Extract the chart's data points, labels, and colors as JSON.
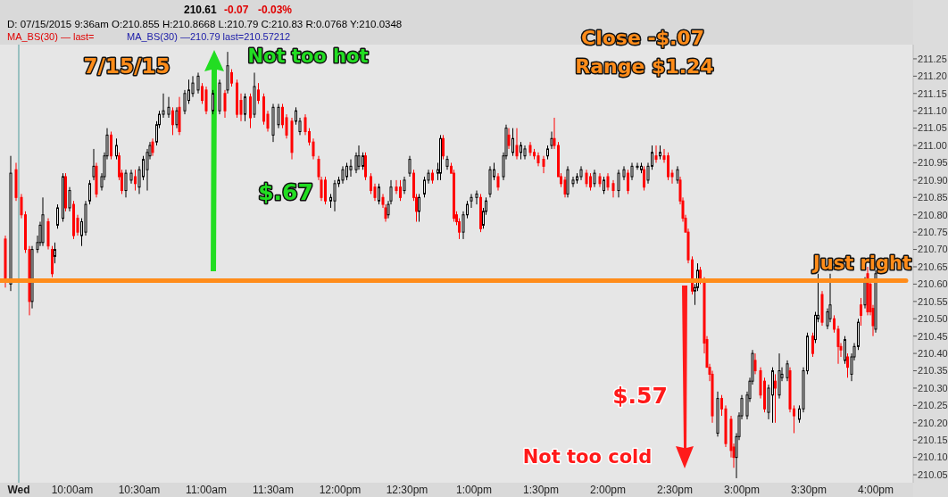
{
  "chart_data": {
    "type": "candlestick",
    "xlim": [
      9.46,
      16.28
    ],
    "ylim": [
      210.027,
      211.291
    ],
    "xticks": [
      {
        "value": 9.6,
        "label": "Wed"
      },
      {
        "value": 10,
        "label": "10:00am"
      },
      {
        "value": 10.5,
        "label": "10:30am"
      },
      {
        "value": 11,
        "label": "11:00am"
      },
      {
        "value": 11.5,
        "label": "11:30am"
      },
      {
        "value": 12,
        "label": "12:00pm"
      },
      {
        "value": 12.5,
        "label": "12:30pm"
      },
      {
        "value": 13,
        "label": "1:00pm"
      },
      {
        "value": 13.5,
        "label": "1:30pm"
      },
      {
        "value": 14,
        "label": "2:00pm"
      },
      {
        "value": 14.5,
        "label": "2:30pm"
      },
      {
        "value": 15,
        "label": "3:00pm"
      },
      {
        "value": 15.5,
        "label": "3:30pm"
      },
      {
        "value": 16,
        "label": "4:00pm"
      }
    ],
    "yticks": [
      210.05,
      {
        "value": 210.1,
        "label": "210.10"
      },
      210.15,
      {
        "value": 210.2,
        "label": "210.20"
      },
      210.25,
      {
        "value": 210.3,
        "label": "210.30"
      },
      210.35,
      {
        "value": 210.4,
        "label": "210.40"
      },
      210.45,
      {
        "value": 210.5,
        "label": "210.50"
      },
      210.55,
      {
        "value": 210.6,
        "label": "210.60"
      },
      210.65,
      {
        "value": 210.7,
        "label": "210.70"
      },
      210.75,
      {
        "value": 210.8,
        "label": "210.80"
      },
      210.85,
      {
        "value": 210.9,
        "label": "210.90"
      },
      210.95,
      {
        "value": 211,
        "label": "211.00"
      },
      211.05,
      {
        "value": 211.1,
        "label": "211.10"
      },
      211.15,
      {
        "value": 211.2,
        "label": "211.20"
      },
      211.25
    ],
    "ref_lines": [
      {
        "axis": "y",
        "value": 210.61,
        "color": "#ff8c1a"
      },
      {
        "axis": "x",
        "value": 9.6,
        "color": "#4d9a9a"
      }
    ],
    "annotations": [
      "210.61",
      "-0.07",
      "-0.03%",
      "D: 07/15/2015   9:36am O:210.855 H:210.8668 L:210.79 C:210.83   R:0.0768 Y:210.0348",
      "MA_BS(30) — last=",
      "MA_BS(30) —210.79 last=210.57212",
      "7/15/15",
      "Not too hot",
      "$.67",
      "Close -$.07",
      "Range $1.24",
      "Just right",
      "$.57",
      "Not too cold"
    ],
    "x": [
      9.5,
      9.54,
      9.58,
      9.62,
      9.65,
      9.68,
      9.7,
      9.74,
      9.76,
      9.78,
      9.82,
      9.85,
      9.87,
      9.89,
      9.93,
      9.95,
      9.98,
      10.01,
      10.04,
      10.07,
      10.1,
      10.13,
      10.16,
      10.18,
      10.22,
      10.24,
      10.26,
      10.29,
      10.33,
      10.35,
      10.37,
      10.4,
      10.44,
      10.47,
      10.5,
      10.53,
      10.56,
      10.58,
      10.6,
      10.63,
      10.65,
      10.68,
      10.72,
      10.75,
      10.78,
      10.8,
      10.84,
      10.87,
      10.9,
      10.94,
      10.97,
      11.0,
      11.05,
      11.1,
      11.14,
      11.16,
      11.19,
      11.23,
      11.26,
      11.29,
      11.33,
      11.36,
      11.39,
      11.43,
      11.46,
      11.5,
      11.54,
      11.57,
      11.6,
      11.64,
      11.67,
      11.7,
      11.74,
      11.77,
      11.8,
      11.84,
      11.86,
      11.89,
      11.93,
      11.96,
      11.99,
      12.02,
      12.05,
      12.08,
      12.12,
      12.14,
      12.17,
      12.19,
      12.23,
      12.26,
      12.29,
      12.32,
      12.34,
      12.36,
      12.38,
      12.42,
      12.45,
      12.48,
      12.52,
      12.55,
      12.57,
      12.59,
      12.63,
      12.66,
      12.69,
      12.73,
      12.75,
      12.77,
      12.8,
      12.83,
      12.85,
      12.87,
      12.89,
      12.92,
      12.95,
      12.98,
      13.02,
      13.05,
      13.07,
      13.09,
      13.12,
      13.15,
      13.18,
      13.22,
      13.24,
      13.26,
      13.29,
      13.32,
      13.35,
      13.38,
      13.42,
      13.45,
      13.48,
      13.52,
      13.55,
      13.58,
      13.6,
      13.63,
      13.65,
      13.68,
      13.7,
      13.74,
      13.77,
      13.8,
      13.84,
      13.87,
      13.9,
      13.94,
      13.97,
      14.0,
      14.04,
      14.08,
      14.12,
      14.15,
      14.18,
      14.22,
      14.25,
      14.27,
      14.3,
      14.33,
      14.36,
      14.39,
      14.42,
      14.45,
      14.48,
      14.52,
      14.54,
      14.56,
      14.58,
      14.6,
      14.63,
      14.65,
      14.67,
      14.69,
      14.72,
      14.74,
      14.76,
      14.78,
      14.82,
      14.85,
      14.88,
      14.92,
      14.94,
      14.96,
      14.98,
      15.0,
      15.04,
      15.06,
      15.08,
      15.1,
      15.14,
      15.17,
      15.2,
      15.23,
      15.25,
      15.28,
      15.3,
      15.34,
      15.36,
      15.39,
      15.43,
      15.46,
      15.49,
      15.53,
      15.55,
      15.57,
      15.6,
      15.64,
      15.66,
      15.69,
      15.72,
      15.74,
      15.77,
      15.79,
      15.82,
      15.84,
      15.87,
      15.89,
      15.92,
      15.94,
      15.96,
      15.98,
      16.0
    ],
    "ohlc": [
      [
        210.73,
        210.74,
        210.59,
        210.61
      ],
      [
        210.6,
        210.97,
        210.58,
        210.92
      ],
      [
        210.93,
        210.95,
        210.84,
        210.85
      ],
      [
        210.85,
        210.86,
        210.79,
        210.8
      ],
      [
        210.8,
        210.81,
        210.69,
        210.7
      ],
      [
        210.7,
        210.71,
        210.51,
        210.55
      ],
      [
        210.55,
        210.71,
        210.53,
        210.7
      ],
      [
        210.7,
        210.74,
        210.69,
        210.72
      ],
      [
        210.72,
        210.78,
        210.71,
        210.77
      ],
      [
        210.72,
        210.85,
        210.71,
        210.8
      ],
      [
        210.78,
        210.79,
        210.7,
        210.71
      ],
      [
        210.7,
        210.71,
        210.62,
        210.63
      ],
      [
        210.68,
        210.72,
        210.66,
        210.7
      ],
      [
        210.77,
        210.83,
        210.76,
        210.82
      ],
      [
        210.79,
        210.92,
        210.78,
        210.91
      ],
      [
        210.91,
        210.92,
        210.81,
        210.82
      ],
      [
        210.82,
        210.88,
        210.81,
        210.87
      ],
      [
        210.83,
        210.84,
        210.73,
        210.74
      ],
      [
        210.79,
        210.8,
        210.74,
        210.75
      ],
      [
        210.74,
        210.79,
        210.71,
        210.78
      ],
      [
        210.75,
        210.84,
        210.74,
        210.83
      ],
      [
        210.84,
        210.9,
        210.83,
        210.89
      ],
      [
        210.91,
        210.99,
        210.9,
        210.94
      ],
      [
        210.94,
        210.95,
        210.85,
        210.86
      ],
      [
        210.88,
        210.92,
        210.87,
        210.91
      ],
      [
        210.91,
        210.98,
        210.9,
        210.97
      ],
      [
        210.97,
        211.05,
        210.96,
        211.03
      ],
      [
        211.03,
        211.04,
        210.96,
        210.97
      ],
      [
        210.97,
        211.02,
        210.96,
        211.0
      ],
      [
        210.97,
        210.98,
        210.9,
        210.91
      ],
      [
        210.92,
        210.93,
        210.86,
        210.87
      ],
      [
        210.87,
        210.93,
        210.85,
        210.92
      ],
      [
        210.9,
        210.93,
        210.89,
        210.92
      ],
      [
        210.91,
        210.93,
        210.87,
        210.89
      ],
      [
        210.88,
        210.94,
        210.86,
        210.93
      ],
      [
        210.91,
        210.97,
        210.9,
        210.96
      ],
      [
        210.93,
        210.99,
        210.87,
        210.98
      ],
      [
        210.97,
        211.01,
        210.96,
        211.0
      ],
      [
        211.01,
        211.02,
        210.97,
        210.98
      ],
      [
        211.01,
        211.07,
        211.0,
        211.06
      ],
      [
        211.06,
        211.1,
        211.05,
        211.09
      ],
      [
        211.09,
        211.15,
        211.08,
        211.1
      ],
      [
        211.09,
        211.14,
        211.08,
        211.11
      ],
      [
        211.1,
        211.11,
        211.03,
        211.06
      ],
      [
        211.06,
        211.11,
        211.05,
        211.1
      ],
      [
        211.11,
        211.14,
        211.03,
        211.04
      ],
      [
        211.1,
        211.16,
        211.09,
        211.15
      ],
      [
        211.13,
        211.19,
        211.12,
        211.16
      ],
      [
        211.15,
        211.2,
        211.14,
        211.18
      ],
      [
        211.16,
        211.21,
        211.15,
        211.2
      ],
      [
        211.17,
        211.18,
        211.12,
        211.13
      ],
      [
        211.16,
        211.17,
        211.09,
        211.1
      ],
      [
        211.1,
        211.16,
        211.09,
        211.15
      ],
      [
        211.1,
        211.19,
        211.09,
        211.18
      ],
      [
        211.15,
        211.16,
        211.08,
        211.1
      ],
      [
        211.16,
        211.27,
        211.15,
        211.23
      ],
      [
        211.21,
        211.22,
        211.17,
        211.18
      ],
      [
        211.18,
        211.19,
        211.08,
        211.09
      ],
      [
        211.13,
        211.15,
        211.07,
        211.09
      ],
      [
        211.09,
        211.15,
        211.07,
        211.14
      ],
      [
        211.14,
        211.15,
        211.05,
        211.08
      ],
      [
        211.09,
        211.21,
        211.08,
        211.17
      ],
      [
        211.16,
        211.18,
        211.12,
        211.13
      ],
      [
        211.14,
        211.15,
        211.06,
        211.07
      ],
      [
        211.09,
        211.1,
        211.04,
        211.05
      ],
      [
        211.03,
        211.12,
        211.01,
        211.11
      ],
      [
        211.06,
        211.12,
        211.05,
        211.11
      ],
      [
        211.11,
        211.12,
        211.05,
        211.06
      ],
      [
        211.08,
        211.09,
        211.02,
        211.03
      ],
      [
        211.07,
        211.08,
        210.96,
        210.98
      ],
      [
        211.07,
        211.11,
        211.06,
        211.1
      ],
      [
        211.04,
        211.08,
        211.03,
        211.07
      ],
      [
        211.08,
        211.09,
        211.03,
        211.04
      ],
      [
        211.04,
        211.05,
        211.0,
        211.01
      ],
      [
        211.01,
        211.02,
        210.96,
        210.97
      ],
      [
        210.96,
        210.97,
        210.9,
        210.91
      ],
      [
        210.9,
        210.91,
        210.84,
        210.85
      ],
      [
        210.9,
        210.91,
        210.83,
        210.84
      ],
      [
        210.84,
        210.86,
        210.82,
        210.85
      ],
      [
        210.84,
        210.9,
        210.81,
        210.89
      ],
      [
        210.89,
        210.91,
        210.88,
        210.9
      ],
      [
        210.9,
        210.94,
        210.89,
        210.93
      ],
      [
        210.91,
        210.95,
        210.9,
        210.94
      ],
      [
        210.93,
        210.96,
        210.91,
        210.94
      ],
      [
        210.93,
        210.98,
        210.92,
        210.97
      ],
      [
        210.94,
        211.0,
        210.93,
        210.97
      ],
      [
        210.94,
        210.98,
        210.93,
        210.97
      ],
      [
        210.97,
        210.98,
        210.9,
        210.91
      ],
      [
        210.91,
        210.92,
        210.86,
        210.87
      ],
      [
        210.88,
        210.89,
        210.84,
        210.85
      ],
      [
        210.84,
        210.89,
        210.83,
        210.88
      ],
      [
        210.85,
        210.86,
        210.82,
        210.83
      ],
      [
        210.82,
        210.83,
        210.78,
        210.79
      ],
      [
        210.8,
        210.84,
        210.79,
        210.83
      ],
      [
        210.84,
        210.9,
        210.83,
        210.88
      ],
      [
        210.88,
        210.9,
        210.86,
        210.87
      ],
      [
        210.88,
        210.9,
        210.84,
        210.85
      ],
      [
        210.87,
        210.91,
        210.86,
        210.9
      ],
      [
        210.92,
        210.97,
        210.91,
        210.96
      ],
      [
        210.92,
        210.93,
        210.84,
        210.85
      ],
      [
        210.85,
        210.86,
        210.78,
        210.81
      ],
      [
        210.81,
        210.86,
        210.78,
        210.85
      ],
      [
        210.86,
        210.91,
        210.85,
        210.9
      ],
      [
        210.9,
        210.93,
        210.89,
        210.92
      ],
      [
        210.92,
        210.93,
        210.89,
        210.9
      ],
      [
        210.92,
        210.95,
        210.9,
        210.93
      ],
      [
        210.92,
        211.03,
        210.9,
        211.02
      ],
      [
        211.02,
        211.03,
        210.96,
        210.97
      ],
      [
        210.94,
        210.97,
        210.93,
        210.96
      ],
      [
        210.94,
        210.95,
        210.92,
        210.92
      ],
      [
        210.92,
        210.93,
        210.78,
        210.79
      ],
      [
        210.8,
        210.81,
        210.77,
        210.78
      ],
      [
        210.78,
        210.79,
        210.73,
        210.75
      ],
      [
        210.75,
        210.81,
        210.73,
        210.8
      ],
      [
        210.8,
        210.84,
        210.79,
        210.83
      ],
      [
        210.84,
        210.86,
        210.82,
        210.85
      ],
      [
        210.85,
        210.87,
        210.83,
        210.86
      ],
      [
        210.85,
        210.86,
        210.75,
        210.76
      ],
      [
        210.77,
        210.82,
        210.76,
        210.81
      ],
      [
        210.81,
        210.85,
        210.8,
        210.84
      ],
      [
        210.86,
        210.94,
        210.85,
        210.93
      ],
      [
        210.91,
        210.95,
        210.9,
        210.93
      ],
      [
        210.91,
        210.92,
        210.87,
        210.88
      ],
      [
        210.91,
        210.98,
        210.9,
        210.97
      ],
      [
        210.97,
        211.06,
        210.96,
        211.05
      ],
      [
        211.03,
        211.05,
        210.99,
        211.0
      ],
      [
        210.98,
        211.05,
        210.97,
        211.02
      ],
      [
        211.0,
        211.05,
        210.96,
        210.97
      ],
      [
        210.98,
        211.01,
        210.96,
        211.0
      ],
      [
        210.97,
        211.0,
        210.96,
        210.99
      ],
      [
        211.0,
        211.01,
        210.97,
        210.98
      ],
      [
        210.98,
        210.99,
        210.96,
        210.97
      ],
      [
        210.97,
        210.98,
        210.94,
        210.95
      ],
      [
        210.96,
        210.97,
        210.92,
        210.94
      ],
      [
        210.97,
        211.0,
        210.96,
        210.99
      ],
      [
        211.0,
        211.04,
        210.99,
        211.02
      ],
      [
        211.02,
        211.08,
        210.99,
        211.0
      ],
      [
        211.0,
        211.01,
        210.91,
        210.91
      ],
      [
        210.91,
        210.92,
        210.88,
        210.89
      ],
      [
        210.9,
        210.91,
        210.85,
        210.86
      ],
      [
        210.86,
        210.94,
        210.85,
        210.93
      ],
      [
        210.89,
        210.91,
        210.88,
        210.9
      ],
      [
        210.9,
        210.92,
        210.89,
        210.91
      ],
      [
        210.91,
        210.94,
        210.9,
        210.93
      ],
      [
        210.92,
        210.93,
        210.88,
        210.89
      ],
      [
        210.91,
        210.92,
        210.87,
        210.88
      ],
      [
        210.89,
        210.93,
        210.88,
        210.92
      ],
      [
        210.91,
        210.92,
        210.88,
        210.89
      ],
      [
        210.87,
        210.91,
        210.86,
        210.9
      ],
      [
        210.91,
        210.92,
        210.87,
        210.88
      ],
      [
        210.89,
        210.9,
        210.85,
        210.87
      ],
      [
        210.87,
        210.93,
        210.85,
        210.92
      ],
      [
        210.91,
        210.94,
        210.9,
        210.93
      ],
      [
        210.92,
        210.93,
        210.86,
        210.87
      ],
      [
        210.91,
        210.95,
        210.9,
        210.94
      ],
      [
        210.94,
        210.95,
        210.93,
        210.94
      ],
      [
        210.93,
        210.95,
        210.92,
        210.94
      ],
      [
        210.93,
        210.94,
        210.87,
        210.88
      ],
      [
        210.9,
        210.95,
        210.89,
        210.94
      ],
      [
        210.94,
        211.0,
        210.93,
        210.98
      ],
      [
        210.97,
        211.0,
        210.95,
        210.96
      ],
      [
        210.97,
        211.0,
        210.96,
        210.98
      ],
      [
        210.97,
        210.99,
        210.95,
        210.96
      ],
      [
        210.97,
        210.98,
        210.9,
        210.91
      ],
      [
        210.92,
        210.93,
        210.89,
        210.91
      ],
      [
        210.9,
        210.94,
        210.89,
        210.93
      ],
      [
        210.9,
        210.91,
        210.83,
        210.84
      ],
      [
        210.84,
        210.85,
        210.78,
        210.79
      ],
      [
        210.79,
        210.8,
        210.75,
        210.75
      ],
      [
        210.75,
        210.76,
        210.66,
        210.67
      ],
      [
        210.67,
        210.68,
        210.57,
        210.58
      ],
      [
        210.58,
        210.6,
        210.54,
        210.59
      ],
      [
        210.59,
        210.66,
        210.58,
        210.64
      ],
      [
        210.64,
        210.65,
        210.6,
        210.61
      ],
      [
        210.61,
        210.62,
        210.4,
        210.43
      ],
      [
        210.44,
        210.45,
        210.36,
        210.36
      ],
      [
        210.36,
        210.37,
        210.32,
        210.34
      ],
      [
        210.34,
        210.35,
        210.2,
        210.22
      ],
      [
        210.17,
        210.29,
        210.16,
        210.27
      ],
      [
        210.27,
        210.28,
        210.22,
        210.24
      ],
      [
        210.24,
        210.25,
        210.13,
        210.14
      ],
      [
        210.21,
        210.22,
        210.1,
        210.12
      ],
      [
        210.13,
        210.14,
        210.07,
        210.1
      ],
      [
        210.1,
        210.17,
        210.04,
        210.16
      ],
      [
        210.16,
        210.23,
        210.15,
        210.22
      ],
      [
        210.22,
        210.28,
        210.21,
        210.27
      ],
      [
        210.22,
        210.29,
        210.21,
        210.28
      ],
      [
        210.27,
        210.33,
        210.26,
        210.32
      ],
      [
        210.32,
        210.41,
        210.31,
        210.4
      ],
      [
        210.38,
        210.4,
        210.34,
        210.35
      ],
      [
        210.35,
        210.36,
        210.27,
        210.28
      ],
      [
        210.32,
        210.33,
        210.23,
        210.24
      ],
      [
        210.23,
        210.31,
        210.21,
        210.3
      ],
      [
        210.28,
        210.36,
        210.2,
        210.35
      ],
      [
        210.32,
        210.34,
        210.2,
        210.3
      ],
      [
        210.28,
        210.4,
        210.27,
        210.35
      ],
      [
        210.33,
        210.36,
        210.32,
        210.34
      ],
      [
        210.33,
        210.38,
        210.32,
        210.37
      ],
      [
        210.35,
        210.36,
        210.23,
        210.24
      ],
      [
        210.24,
        210.25,
        210.17,
        210.22
      ],
      [
        210.21,
        210.25,
        210.2,
        210.24
      ],
      [
        210.24,
        210.36,
        210.23,
        210.35
      ],
      [
        210.35,
        210.46,
        210.34,
        210.45
      ],
      [
        210.45,
        210.46,
        210.39,
        210.4
      ],
      [
        210.44,
        210.52,
        210.43,
        210.51
      ],
      [
        210.5,
        210.63,
        210.49,
        210.51
      ],
      [
        210.57,
        210.58,
        210.48,
        210.49
      ],
      [
        210.48,
        210.53,
        210.47,
        210.52
      ],
      [
        210.5,
        210.63,
        210.49,
        210.54
      ],
      [
        210.5,
        210.51,
        210.46,
        210.47
      ],
      [
        210.47,
        210.48,
        210.37,
        210.42
      ],
      [
        210.42,
        210.43,
        210.39,
        210.41
      ],
      [
        210.38,
        210.45,
        210.37,
        210.44
      ],
      [
        210.39,
        210.4,
        210.33,
        210.36
      ],
      [
        210.34,
        210.4,
        210.32,
        210.39
      ],
      [
        210.39,
        210.43,
        210.38,
        210.42
      ],
      [
        210.42,
        210.5,
        210.41,
        210.49
      ],
      [
        210.54,
        210.56,
        210.48,
        210.51
      ],
      [
        210.54,
        210.62,
        210.53,
        210.61
      ],
      [
        210.63,
        210.65,
        210.51,
        210.52
      ],
      [
        210.6,
        210.61,
        210.51,
        210.52
      ],
      [
        210.53,
        210.54,
        210.45,
        210.48
      ],
      [
        210.47,
        210.64,
        210.46,
        210.63
      ]
    ]
  }
}
